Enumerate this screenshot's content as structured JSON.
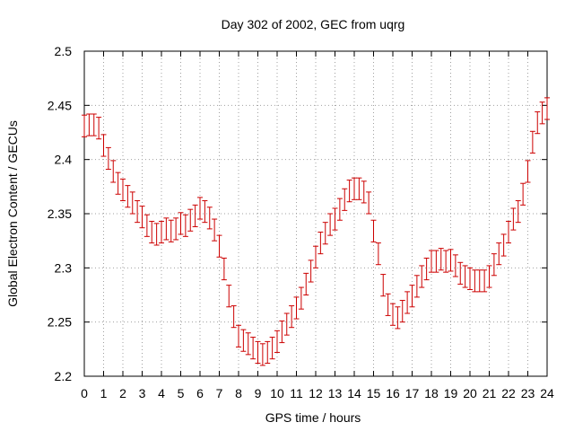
{
  "chart_data": {
    "type": "line",
    "title": "Day 302 of 2002, GEC from uqrg",
    "xlabel": "GPS time / hours",
    "ylabel": "Global Electron Content / GECUs",
    "xlim": [
      0,
      24
    ],
    "ylim": [
      2.2,
      2.5
    ],
    "x_ticks": [
      "0",
      "1",
      "2",
      "3",
      "4",
      "5",
      "6",
      "7",
      "8",
      "9",
      "10",
      "11",
      "12",
      "13",
      "14",
      "15",
      "16",
      "17",
      "18",
      "19",
      "20",
      "21",
      "22",
      "23",
      "24"
    ],
    "y_ticks": [
      "2.2",
      "2.25",
      "2.3",
      "2.35",
      "2.4",
      "2.45",
      "2.5"
    ],
    "grid": true,
    "error_bar_halfwidth": 0.01,
    "series_color": "#cc0000",
    "series": [
      {
        "x": [
          0,
          0.25,
          0.5,
          0.75,
          1,
          1.25,
          1.5,
          1.75,
          2,
          2.25,
          2.5,
          2.75,
          3,
          3.25,
          3.5,
          3.75,
          4,
          4.25,
          4.5,
          4.75,
          5,
          5.25,
          5.5,
          5.75,
          6,
          6.25,
          6.5,
          6.75,
          7,
          7.25,
          7.5,
          7.75,
          8,
          8.25,
          8.5,
          8.75,
          9,
          9.25,
          9.5,
          9.75,
          10,
          10.25,
          10.5,
          10.75,
          11,
          11.25,
          11.5,
          11.75,
          12,
          12.25,
          12.5,
          12.75,
          13,
          13.25,
          13.5,
          13.75,
          14,
          14.25,
          14.5,
          14.75,
          15,
          15.25,
          15.5,
          15.75,
          16,
          16.25,
          16.5,
          16.75,
          17,
          17.25,
          17.5,
          17.75,
          18,
          18.25,
          18.5,
          18.75,
          19,
          19.25,
          19.5,
          19.75,
          20,
          20.25,
          20.5,
          20.75,
          21,
          21.25,
          21.5,
          21.75,
          22,
          22.25,
          22.5,
          22.75,
          23,
          23.25,
          23.5,
          23.75,
          24
        ],
        "y": [
          2.431,
          2.432,
          2.432,
          2.429,
          2.413,
          2.401,
          2.389,
          2.378,
          2.372,
          2.366,
          2.36,
          2.352,
          2.347,
          2.339,
          2.333,
          2.331,
          2.333,
          2.336,
          2.334,
          2.336,
          2.341,
          2.339,
          2.344,
          2.348,
          2.355,
          2.352,
          2.346,
          2.335,
          2.32,
          2.299,
          2.274,
          2.255,
          2.237,
          2.233,
          2.23,
          2.226,
          2.222,
          2.22,
          2.222,
          2.226,
          2.232,
          2.241,
          2.248,
          2.255,
          2.263,
          2.272,
          2.285,
          2.297,
          2.31,
          2.323,
          2.332,
          2.34,
          2.345,
          2.354,
          2.363,
          2.371,
          2.373,
          2.373,
          2.37,
          2.36,
          2.334,
          2.313,
          2.284,
          2.266,
          2.257,
          2.254,
          2.26,
          2.268,
          2.274,
          2.283,
          2.292,
          2.299,
          2.306,
          2.306,
          2.308,
          2.306,
          2.307,
          2.302,
          2.295,
          2.292,
          2.29,
          2.288,
          2.288,
          2.288,
          2.292,
          2.303,
          2.313,
          2.321,
          2.333,
          2.345,
          2.352,
          2.368,
          2.389,
          2.416,
          2.434,
          2.443,
          2.447
        ]
      }
    ]
  }
}
